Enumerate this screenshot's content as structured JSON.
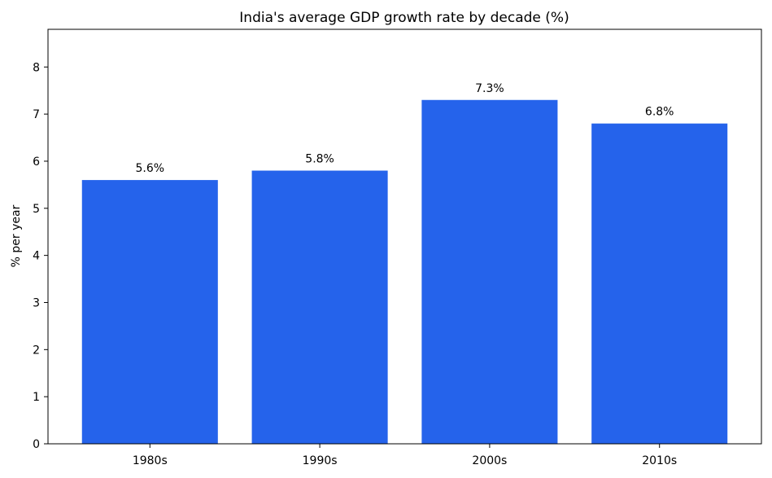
{
  "chart_data": {
    "type": "bar",
    "title": "India's average GDP growth rate by decade (%)",
    "xlabel": "",
    "ylabel": "% per year",
    "categories": [
      "1980s",
      "1990s",
      "2000s",
      "2010s"
    ],
    "values": [
      5.6,
      5.8,
      7.3,
      6.8
    ],
    "data_labels": [
      "5.6%",
      "5.8%",
      "7.3%",
      "6.8%"
    ],
    "ylim": [
      0,
      8.8
    ],
    "yticks": [
      0,
      1,
      2,
      3,
      4,
      5,
      6,
      7,
      8
    ],
    "bar_color": "#2563eb",
    "grid": false,
    "legend": "none"
  }
}
